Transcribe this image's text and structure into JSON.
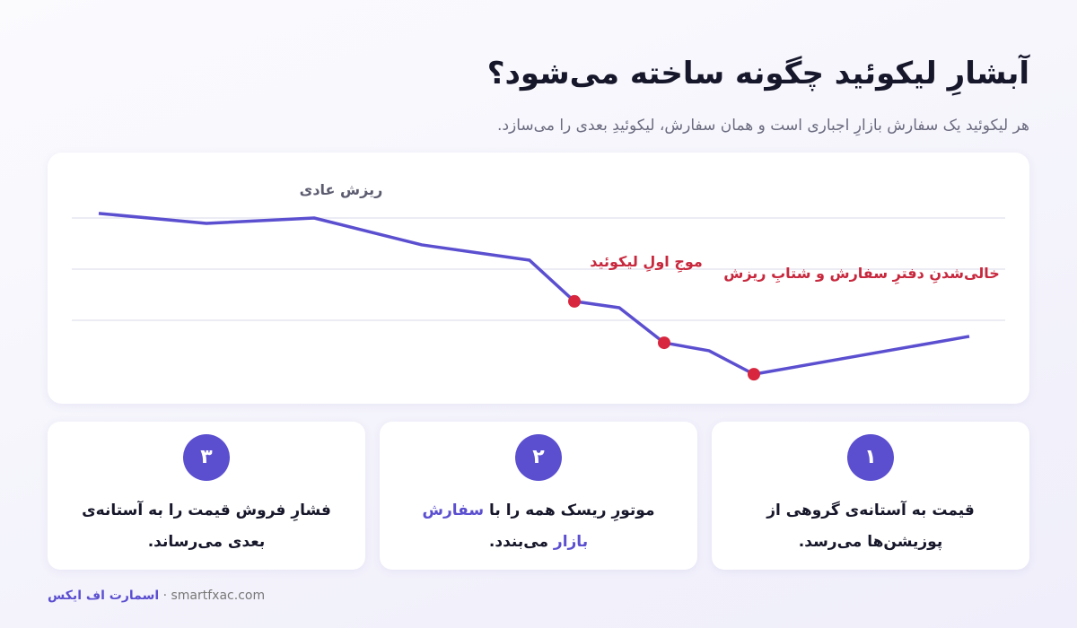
{
  "header": {
    "title": "آبشارِ لیکوئید چگونه ساخته می‌شود؟",
    "subtitle": "هر لیکوئید یک سفارش بازارِ اجباری است و همان سفارش، لیکوئیدِ بعدی را می‌سازد."
  },
  "chart_data": {
    "type": "line",
    "x": [
      0,
      12,
      24,
      36,
      48,
      53,
      58,
      63,
      68,
      73,
      97
    ],
    "series": [
      {
        "color": "#5b4fd0",
        "values": [
          101.8,
          97.9,
          100,
          89.5,
          83.5,
          67.4,
          64.9,
          51.2,
          48.1,
          38.9,
          53.7
        ]
      }
    ],
    "highlight_points": [
      5,
      7,
      9
    ],
    "highlight_color": "#d7263d",
    "xlim": [
      0,
      97
    ],
    "ylim": [
      30,
      120
    ],
    "yticks": [
      100,
      80,
      60
    ],
    "grid": true,
    "annotations": [
      {
        "text": "ریزش عادی",
        "color": "#5c5c70"
      },
      {
        "text": "موجِ اولِ لیکوئید",
        "color": "#c8283d"
      },
      {
        "text": "خالی‌شدنِ دفترِ سفارش و شتابِ ریزش",
        "color": "#c8283d"
      }
    ]
  },
  "steps": [
    {
      "number": "۱",
      "parts": [
        "قیمت به آستانه‌ی گروهی از پوزیشن‌ها می‌رسد."
      ]
    },
    {
      "number": "۲",
      "parts": [
        "موتورِ ریسک همه را با",
        "سفارش بازار",
        "می‌بندد."
      ],
      "highlight": 1
    },
    {
      "number": "۳",
      "parts": [
        "فشارِ فروش قیمت را به آستانه‌ی بعدی می‌رساند."
      ]
    }
  ],
  "footer": {
    "brand": "اسمارت اف ایکس",
    "separator": "·",
    "site": "smartfxac.com"
  }
}
